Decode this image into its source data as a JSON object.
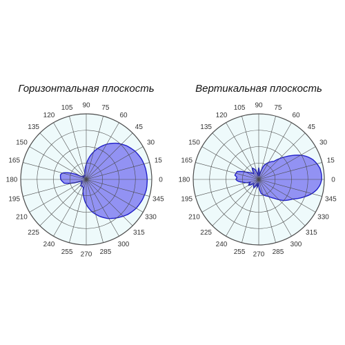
{
  "colors": {
    "plot_background": "#eefafb",
    "grid": "#4a4a4a",
    "pattern_fill": "#8c8cf2",
    "pattern_stroke": "#1f1fc8",
    "tick_label": "#333333"
  },
  "chart_data": [
    {
      "type": "polar",
      "title": "Горизонтальная плоскость",
      "angle_ticks": [
        "0",
        "15",
        "30",
        "45",
        "60",
        "75",
        "90",
        "105",
        "120",
        "135",
        "150",
        "165",
        "180",
        "195",
        "210",
        "225",
        "240",
        "255",
        "270",
        "285",
        "300",
        "315",
        "330",
        "345"
      ],
      "angle_direction": "counterclockwise, 0 at right",
      "radial_range": [
        0,
        1
      ],
      "radial_rings": [
        0.25,
        0.5,
        0.75,
        1.0
      ],
      "grid": true,
      "series": [
        {
          "angles_deg": [
            0,
            10,
            20,
            30,
            40,
            50,
            60,
            70,
            80,
            90,
            100,
            110,
            120,
            130,
            140,
            150,
            160,
            165,
            170,
            180,
            190,
            195,
            200,
            210,
            220,
            230,
            240,
            250,
            260,
            270,
            280,
            290,
            300,
            310,
            320,
            330,
            340,
            350
          ],
          "values": [
            0.93,
            0.92,
            0.9,
            0.86,
            0.8,
            0.72,
            0.62,
            0.5,
            0.37,
            0.23,
            0.12,
            0.06,
            0.06,
            0.07,
            0.05,
            0.1,
            0.3,
            0.38,
            0.4,
            0.39,
            0.34,
            0.22,
            0.08,
            0.07,
            0.1,
            0.13,
            0.12,
            0.13,
            0.25,
            0.38,
            0.5,
            0.6,
            0.69,
            0.76,
            0.83,
            0.88,
            0.91,
            0.93
          ]
        }
      ]
    },
    {
      "type": "polar",
      "title": "Вертикальная плоскость",
      "angle_ticks": [
        "0",
        "15",
        "30",
        "45",
        "60",
        "75",
        "90",
        "105",
        "120",
        "135",
        "150",
        "165",
        "180",
        "195",
        "210",
        "225",
        "240",
        "255",
        "270",
        "285",
        "300",
        "315",
        "330",
        "345"
      ],
      "angle_direction": "counterclockwise, 0 at right",
      "radial_range": [
        0,
        1
      ],
      "radial_rings": [
        0.25,
        0.5,
        0.75,
        1.0
      ],
      "grid": true,
      "series": [
        {
          "angles_deg": [
            0,
            5,
            10,
            15,
            20,
            25,
            30,
            35,
            40,
            45,
            50,
            60,
            70,
            80,
            90,
            100,
            110,
            120,
            130,
            140,
            150,
            160,
            170,
            175,
            180,
            185,
            190,
            200,
            210,
            220,
            230,
            240,
            250,
            260,
            265,
            270,
            275,
            280,
            290,
            300,
            310,
            320,
            330,
            335,
            340,
            345,
            350,
            355
          ],
          "values": [
            0.96,
            0.96,
            0.95,
            0.92,
            0.88,
            0.82,
            0.74,
            0.64,
            0.54,
            0.45,
            0.36,
            0.3,
            0.22,
            0.05,
            0.18,
            0.05,
            0.16,
            0.2,
            0.12,
            0.15,
            0.22,
            0.35,
            0.37,
            0.33,
            0.35,
            0.32,
            0.25,
            0.14,
            0.18,
            0.1,
            0.12,
            0.15,
            0.08,
            0.12,
            0.05,
            0.1,
            0.16,
            0.22,
            0.26,
            0.3,
            0.38,
            0.5,
            0.6,
            0.68,
            0.76,
            0.84,
            0.9,
            0.94
          ]
        }
      ]
    }
  ]
}
